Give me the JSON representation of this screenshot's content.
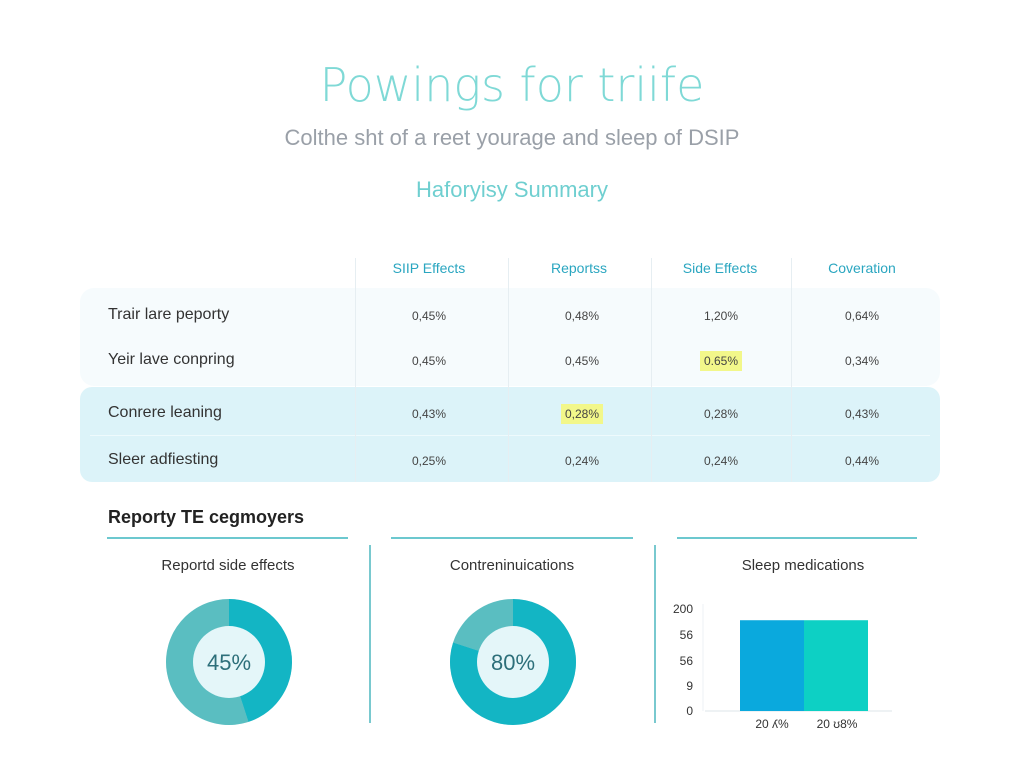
{
  "header": {
    "title": "Powings for triife",
    "subtitle": "Colthe sht of a reet yourage and sleep of DSIP",
    "summary_title": "Haforyisy Summary"
  },
  "table": {
    "columns": [
      "SIIP Effects",
      "Reportss",
      "Side Effects",
      "Coveration"
    ],
    "rows": [
      {
        "label": "Trair lare peporty",
        "values": [
          "0,45%",
          "0,48%",
          "1,20%",
          "0,64%"
        ]
      },
      {
        "label": "Yeir lave conpring",
        "values": [
          "0,45%",
          "0,45%",
          "0.65%",
          "0,34%"
        ],
        "highlight": 2
      },
      {
        "label": "Conrere leaning",
        "values": [
          "0,43%",
          "0,28%",
          "0,28%",
          "0,43%"
        ],
        "highlight": 1
      },
      {
        "label": "Sleer adfiesting",
        "values": [
          "0,25%",
          "0,24%",
          "0,24%",
          "0,44%"
        ]
      }
    ],
    "highlight_color": "#f2f78a"
  },
  "section": {
    "title": "Reporty TE cegmoyers"
  },
  "panels": [
    {
      "title": "Reportd side effects",
      "type": "donut",
      "value": 45,
      "label": "45%"
    },
    {
      "title": "Contreninuications",
      "type": "donut",
      "value": 80,
      "label": "80%"
    },
    {
      "title": "Sleep medications",
      "type": "bar"
    }
  ],
  "chart_data": {
    "type": "bar",
    "title": "Sleep medications",
    "y_tick_labels": [
      "200",
      "56",
      "56",
      "9",
      "0"
    ],
    "categories": [
      "20 ʎ%",
      "20 ʊ8%"
    ],
    "values": [
      178,
      178
    ],
    "colors": [
      "#0aa9dd",
      "#0dd0c4"
    ],
    "ylim": [
      0,
      200
    ],
    "grid": false
  },
  "colors": {
    "accent": "#7fd9d6",
    "donut_fill": "#13b5c4",
    "donut_track": "#a9dbe0"
  }
}
